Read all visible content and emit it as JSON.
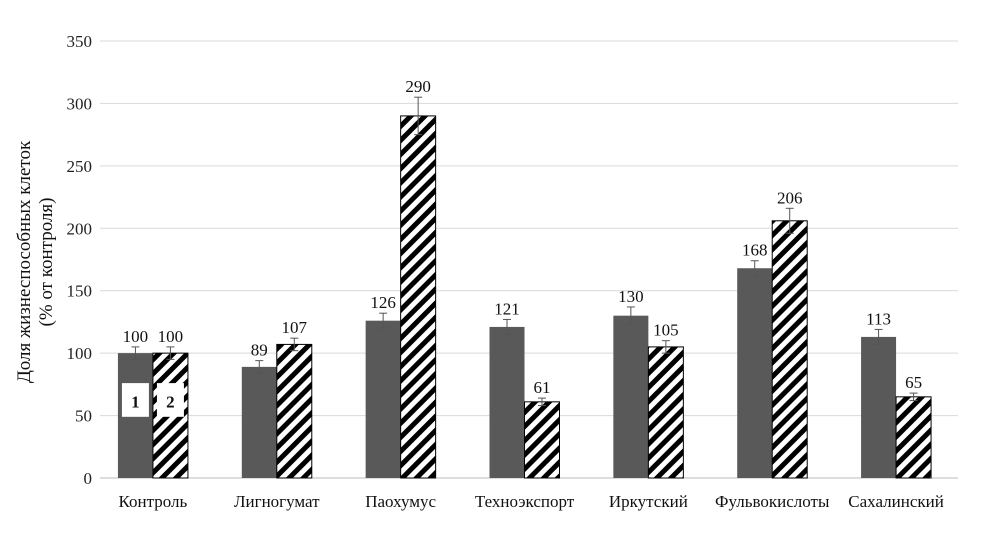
{
  "chart_data": {
    "type": "bar",
    "title": "",
    "ylabel": [
      "Доля жизнеспособных клеток",
      "(% от контроля)"
    ],
    "xlabel": "",
    "ylim": [
      0,
      350
    ],
    "yticks": [
      0,
      50,
      100,
      150,
      200,
      250,
      300,
      350
    ],
    "grid": true,
    "legend": "markers inside the first group's bars",
    "categories": [
      "Контроль",
      "Лигногумат",
      "Паохумус",
      "Техноэкспорт",
      "Иркутский",
      "Фульвокислоты",
      "Сахалинский"
    ],
    "series": [
      {
        "name": "1",
        "fill": "solid",
        "color": "#595959",
        "values": [
          100,
          89,
          126,
          121,
          130,
          168,
          113
        ],
        "errors": [
          5,
          5,
          6,
          6,
          7,
          6,
          6
        ]
      },
      {
        "name": "2",
        "fill": "hatched",
        "color": "#000000",
        "values": [
          100,
          107,
          290,
          61,
          105,
          206,
          65
        ],
        "errors": [
          5,
          5,
          15,
          3,
          5,
          10,
          3
        ]
      }
    ]
  }
}
